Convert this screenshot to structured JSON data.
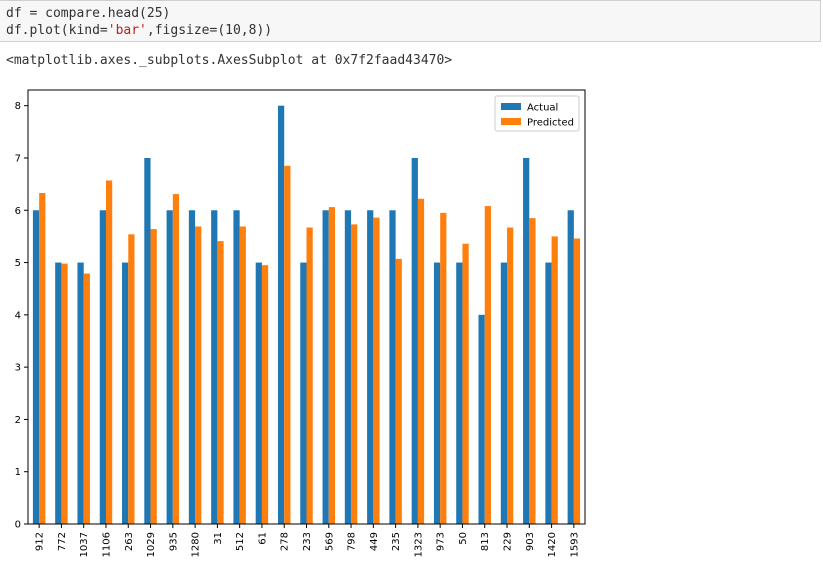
{
  "code_cell": {
    "line1": "df = compare.head(25)",
    "line2_prefix": "df.plot(kind=",
    "line2_string": "'bar'",
    "line2_suffix": ",figsize=(10,8))"
  },
  "output": {
    "repr": "<matplotlib.axes._subplots.AxesSubplot at 0x7f2faad43470>"
  },
  "colors": {
    "actual": "#1f77b4",
    "predicted": "#ff7f0e"
  },
  "chart_data": {
    "type": "bar",
    "title": "",
    "xlabel": "",
    "ylabel": "",
    "ylim": [
      0,
      8.3
    ],
    "yticks": [
      "0",
      "1",
      "2",
      "3",
      "4",
      "5",
      "6",
      "7",
      "8"
    ],
    "legend_position": "top-right",
    "categories": [
      "912",
      "772",
      "1037",
      "1106",
      "263",
      "1029",
      "935",
      "1280",
      "31",
      "512",
      "61",
      "278",
      "233",
      "569",
      "798",
      "449",
      "235",
      "1323",
      "973",
      "50",
      "813",
      "229",
      "903",
      "1420",
      "1593"
    ],
    "series": [
      {
        "name": "Actual",
        "values": [
          6,
          5,
          5,
          6,
          5,
          7,
          6,
          6,
          6,
          6,
          5,
          8,
          5,
          6,
          6,
          6,
          6,
          7,
          5,
          5,
          4,
          5,
          7,
          5,
          6
        ]
      },
      {
        "name": "Predicted",
        "values": [
          6.33,
          4.98,
          4.79,
          6.57,
          5.54,
          5.64,
          6.31,
          5.69,
          5.41,
          5.69,
          4.95,
          6.85,
          5.67,
          6.06,
          5.73,
          5.86,
          5.07,
          6.22,
          5.95,
          5.36,
          6.08,
          5.67,
          5.85,
          5.5,
          5.46
        ]
      }
    ]
  }
}
